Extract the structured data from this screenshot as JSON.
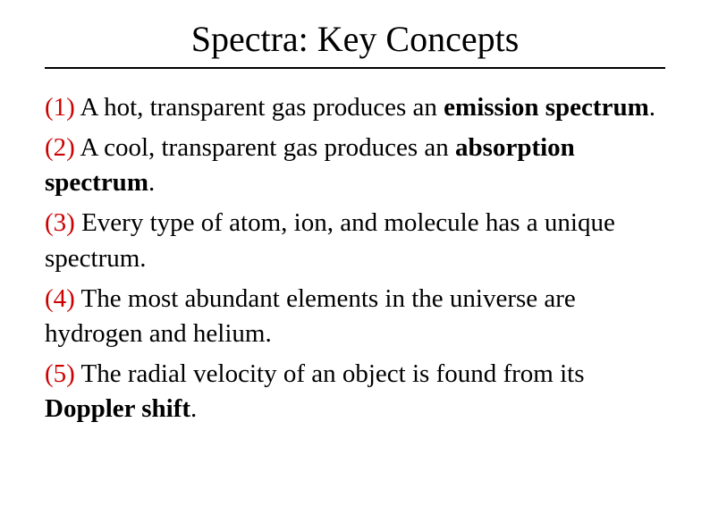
{
  "title": "Spectra: Key Concepts",
  "items": [
    {
      "num": "(1)",
      "text_before": " A hot, transparent gas produces an ",
      "bold": "emission spectrum",
      "text_after": "."
    },
    {
      "num": "(2)",
      "text_before": " A cool, transparent gas produces an ",
      "bold": "absorption spectrum",
      "text_after": "."
    },
    {
      "num": "(3)",
      "text_before": " Every type of atom, ion, and molecule has a unique spectrum.",
      "bold": "",
      "text_after": ""
    },
    {
      "num": "(4)",
      "text_before": " The most abundant elements in the universe are hydrogen and helium.",
      "bold": "",
      "text_after": ""
    },
    {
      "num": "(5)",
      "text_before": " The radial velocity of an object is found from its ",
      "bold": "Doppler shift",
      "text_after": "."
    }
  ],
  "colors": {
    "number_color": "#cc0000",
    "text_color": "#000000",
    "background": "#ffffff"
  },
  "typography": {
    "title_fontsize": 40,
    "body_fontsize": 29,
    "font_family": "Times New Roman"
  }
}
